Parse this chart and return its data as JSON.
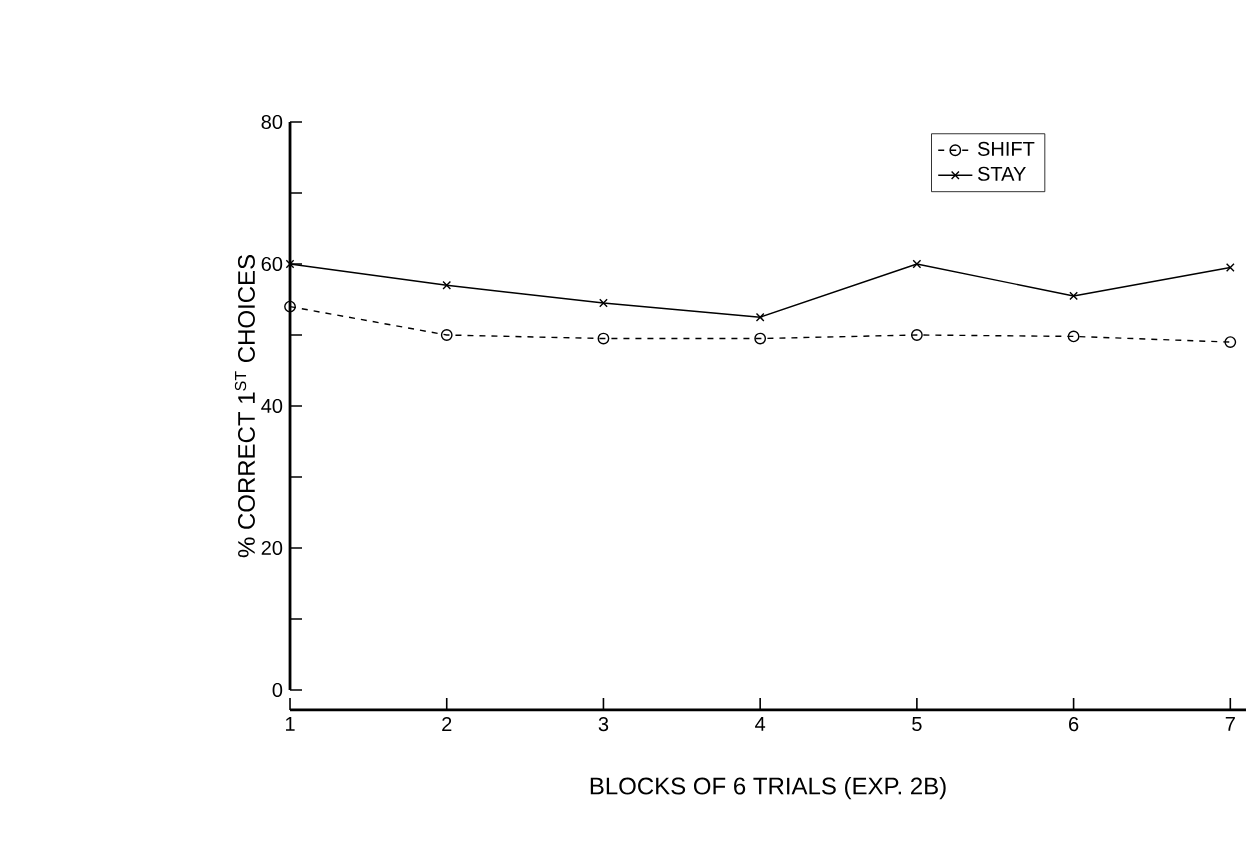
{
  "chart_data": {
    "type": "line",
    "xlabel": "BLOCKS OF 6 TRIALS (EXP. 2B)",
    "ylabel": "% CORRECT 1$^{ST}$ CHOICES",
    "x": [
      1,
      2,
      3,
      4,
      5,
      6,
      7
    ],
    "series": [
      {
        "name": "SHIFT",
        "color": "#000000",
        "marker": "circle",
        "line_style": "dashed",
        "values": [
          54,
          50,
          49.5,
          49.5,
          50,
          49.8,
          49
        ]
      },
      {
        "name": "STAY",
        "color": "#000000",
        "marker": "cross",
        "line_style": "solid",
        "values": [
          60,
          57,
          54.5,
          52.5,
          60,
          55.5,
          59.5
        ]
      }
    ],
    "xlim": [
      1,
      7.1
    ],
    "xticks": [
      1,
      2,
      3,
      4,
      5,
      6,
      7
    ],
    "ylim": [
      0,
      80
    ],
    "yticks": [
      0,
      {
        "value": 10,
        "label": null
      },
      20,
      {
        "value": 30,
        "label": null
      },
      40,
      {
        "value": 50,
        "label": null
      },
      60,
      {
        "value": 70,
        "label": null
      },
      80
    ],
    "grid": false,
    "legend": "top right"
  }
}
